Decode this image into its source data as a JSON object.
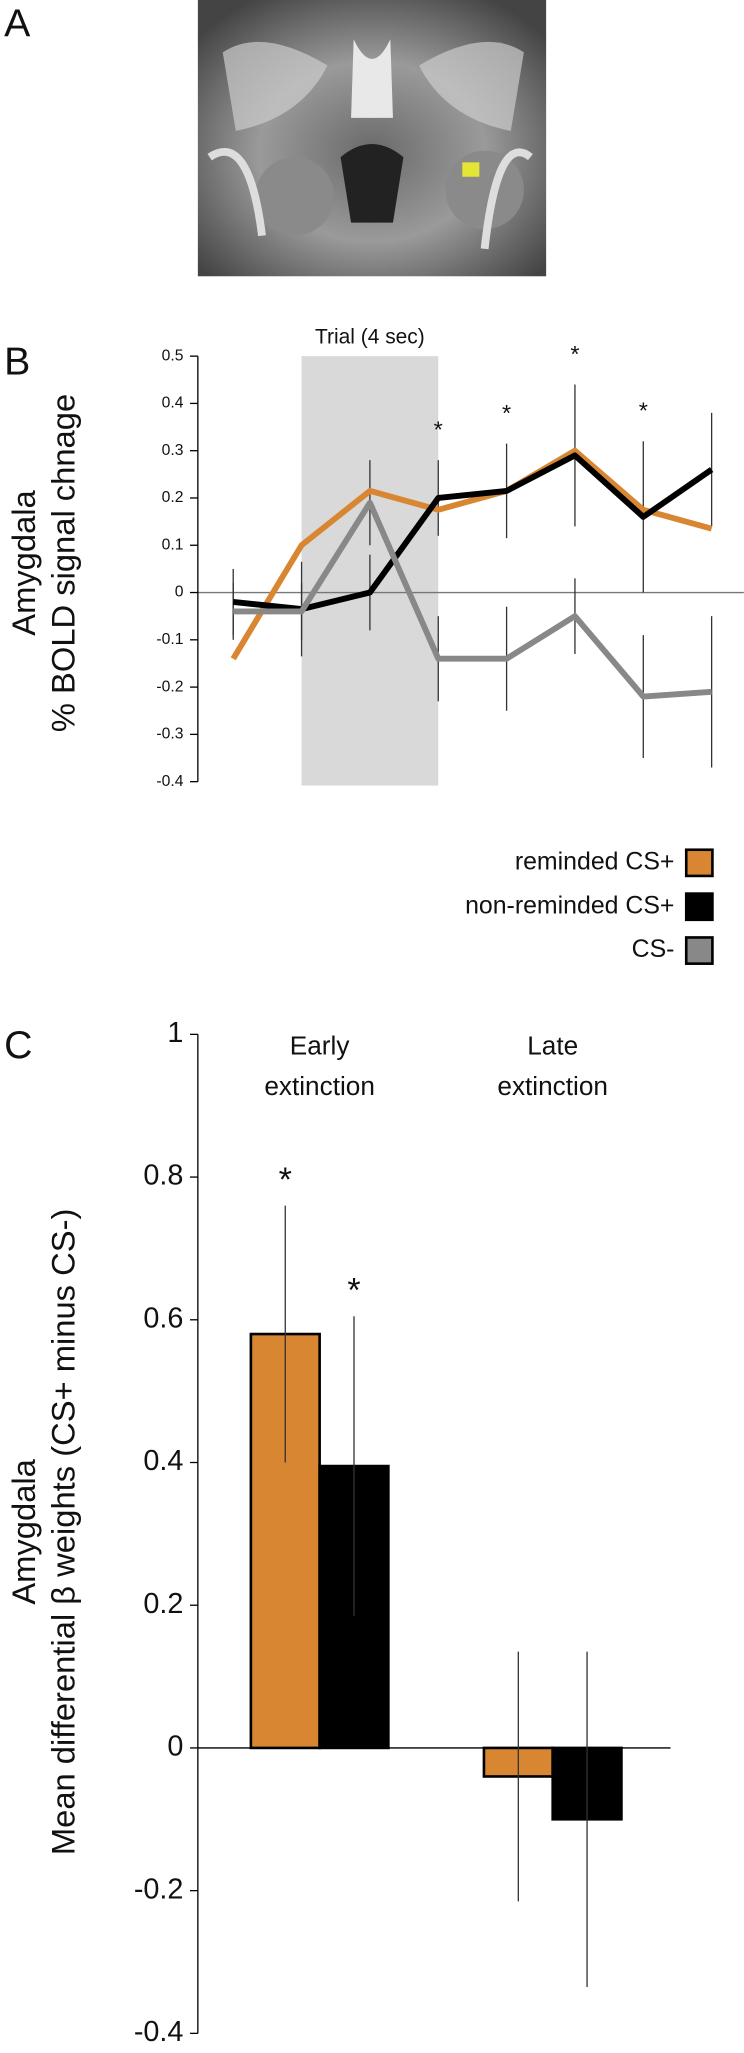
{
  "panel_labels": [
    "A",
    "B",
    "C"
  ],
  "chart_data": [
    {
      "type": "line",
      "y_label": [
        "Amygdala",
        "% BOLD signal chnage"
      ],
      "categories": [
        null,
        null,
        null,
        null,
        null,
        null,
        null,
        null
      ],
      "shade": {
        "label": "Trial (4 sec)",
        "from": 1,
        "to": 3
      },
      "ylim": [
        -0.4,
        0.5
      ],
      "yticks": [
        0.5,
        0.4,
        0.3,
        0.2,
        0.1,
        0,
        -0.1,
        -0.2,
        -0.3,
        -0.4
      ],
      "series": [
        {
          "name": "reminded CS+",
          "color": "#d98632",
          "values": [
            -0.14,
            0.1,
            0.215,
            0.175,
            0.215,
            0.3,
            0.175,
            0.135
          ]
        },
        {
          "name": "non-reminded CS+",
          "color": "#000000",
          "values": [
            -0.02,
            -0.035,
            0.0,
            0.2,
            0.215,
            0.29,
            0.16,
            0.26
          ],
          "errors": [
            0.07,
            0.1,
            0.08,
            0.08,
            0.1,
            0.15,
            0.16,
            0.12
          ],
          "markers": [
            null,
            null,
            null,
            "*",
            "*",
            "*",
            "*",
            null
          ]
        },
        {
          "name": "CS-",
          "color": "#888888",
          "values": [
            -0.04,
            -0.04,
            0.19,
            -0.14,
            -0.14,
            -0.05,
            -0.22,
            -0.21
          ],
          "errors": [
            0.06,
            0.06,
            0.09,
            0.09,
            0.11,
            0.08,
            0.13,
            0.16
          ]
        }
      ]
    },
    {
      "type": "bar",
      "y_label": [
        "Amygdala",
        "Mean differential β weights (CS+ minus CS-)"
      ],
      "categories": [
        "Early extinction",
        "Late extinction"
      ],
      "ylim": [
        -0.4,
        1
      ],
      "yticks": [
        1,
        0.8,
        0.6,
        0.4,
        0.2,
        0,
        -0.2,
        -0.4
      ],
      "series": [
        {
          "name": "reminded CS+",
          "color": "#d98632",
          "values": [
            0.58,
            -0.04
          ],
          "errors": [
            0.18,
            0.175
          ],
          "markers": [
            "*",
            null
          ]
        },
        {
          "name": "non-reminded CS+",
          "color": "#000000",
          "values": [
            0.395,
            -0.1
          ],
          "errors": [
            0.21,
            0.235
          ],
          "markers": [
            "*",
            null
          ]
        }
      ]
    }
  ]
}
